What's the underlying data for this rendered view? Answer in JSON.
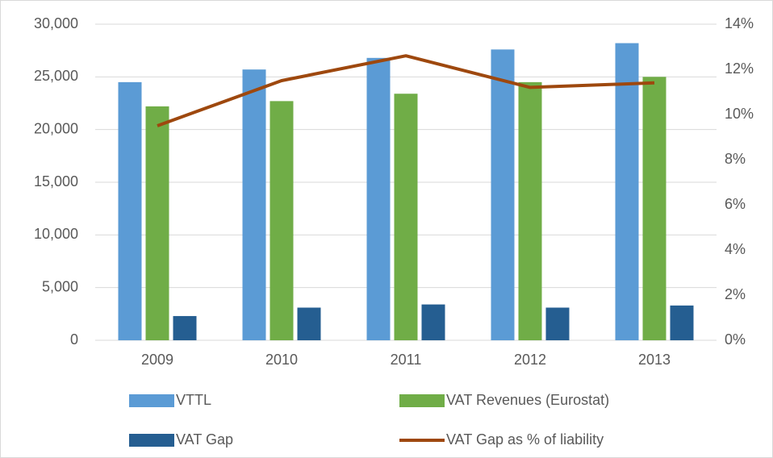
{
  "chart_data": {
    "type": "bar",
    "categories": [
      "2009",
      "2010",
      "2011",
      "2012",
      "2013"
    ],
    "series": [
      {
        "name": "VTTL",
        "color": "#5b9bd5",
        "values": [
          24500,
          25700,
          26800,
          27600,
          28200
        ]
      },
      {
        "name": "VAT Revenues (Eurostat)",
        "color": "#70ad47",
        "values": [
          22200,
          22700,
          23400,
          24500,
          25000
        ]
      },
      {
        "name": "VAT Gap",
        "color": "#255e91",
        "values": [
          2300,
          3100,
          3400,
          3100,
          3300
        ]
      },
      {
        "name": "VAT Gap as % of liability",
        "color": "#9e480e",
        "type": "line",
        "axis": "y2",
        "values": [
          9.5,
          11.5,
          12.6,
          11.2,
          11.4
        ]
      }
    ],
    "ylim": [
      0,
      30000
    ],
    "yticks": [
      0,
      {
        "value": 5000,
        "label": "5,000"
      },
      {
        "value": 10000,
        "label": "10,000"
      },
      {
        "value": 15000,
        "label": "15,000"
      },
      {
        "value": 20000,
        "label": "20,000"
      },
      {
        "value": 25000,
        "label": "25,000"
      },
      {
        "value": 30000,
        "label": "30,000"
      }
    ],
    "y2lim": [
      0,
      14
    ],
    "y2ticks": [
      {
        "value": 0,
        "label": "0%"
      },
      {
        "value": 2,
        "label": "2%"
      },
      {
        "value": 4,
        "label": "4%"
      },
      {
        "value": 6,
        "label": "6%"
      },
      {
        "value": 8,
        "label": "8%"
      },
      {
        "value": 10,
        "label": "10%"
      },
      {
        "value": 12,
        "label": "12%"
      },
      {
        "value": 14,
        "label": "14%"
      }
    ],
    "grid": true,
    "legend": "bottom"
  }
}
